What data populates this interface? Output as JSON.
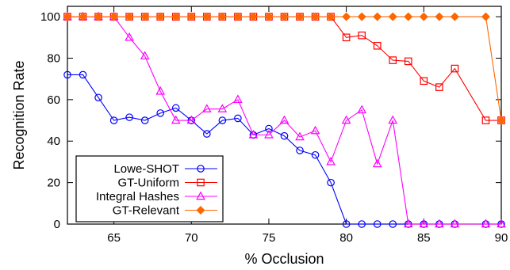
{
  "chart_data": {
    "type": "line",
    "title": "",
    "xlabel": "% Occlusion",
    "ylabel": "Recognition Rate",
    "xlim": [
      62,
      90
    ],
    "ylim": [
      0,
      105
    ],
    "x_ticks": [
      65,
      70,
      75,
      80,
      85,
      90
    ],
    "y_ticks": [
      0,
      20,
      40,
      60,
      80,
      100
    ],
    "grid": false,
    "legend_position": "bottom-left",
    "series": [
      {
        "name": "Lowe-SHOT",
        "color": "#0000ff",
        "marker": "circle",
        "x": [
          62,
          63,
          64,
          65,
          66,
          67,
          68,
          69,
          70,
          71,
          72,
          73,
          74,
          75,
          76,
          77,
          78,
          79,
          80,
          81,
          82,
          83,
          84,
          85,
          86,
          87,
          89,
          90
        ],
        "y": [
          72,
          72,
          61,
          50,
          51.5,
          50,
          53.5,
          56,
          50,
          43.5,
          50,
          51,
          43,
          46,
          42.5,
          35.5,
          33.3,
          20,
          0,
          0,
          0,
          0,
          0,
          0,
          0,
          0,
          0,
          0
        ]
      },
      {
        "name": "GT-Uniform",
        "color": "#ff0000",
        "marker": "square",
        "x": [
          62,
          63,
          64,
          65,
          66,
          67,
          68,
          69,
          70,
          71,
          72,
          73,
          74,
          75,
          76,
          77,
          78,
          79,
          80,
          81,
          82,
          83,
          84,
          85,
          86,
          87,
          89,
          90
        ],
        "y": [
          100,
          100,
          100,
          100,
          100,
          100,
          100,
          100,
          100,
          100,
          100,
          100,
          100,
          100,
          100,
          100,
          100,
          100,
          90,
          91,
          86,
          79,
          78.5,
          69,
          66,
          75,
          50,
          50
        ]
      },
      {
        "name": "Integral Hashes",
        "color": "#ff00ff",
        "marker": "triangle",
        "x": [
          62,
          63,
          64,
          65,
          66,
          67,
          68,
          69,
          70,
          71,
          72,
          73,
          74,
          75,
          76,
          77,
          78,
          79,
          80,
          81,
          82,
          83,
          84,
          85,
          86,
          87,
          89,
          90
        ],
        "y": [
          100,
          100,
          100,
          100,
          90,
          81,
          64,
          50,
          50,
          55.5,
          55.5,
          60,
          43,
          43,
          50,
          42,
          45,
          30,
          50,
          55,
          29,
          50,
          0,
          0,
          0,
          0,
          0,
          0
        ]
      },
      {
        "name": "GT-Relevant",
        "color": "#ff6600",
        "marker": "diamond",
        "x": [
          62,
          63,
          64,
          65,
          66,
          67,
          68,
          69,
          70,
          71,
          72,
          73,
          74,
          75,
          76,
          77,
          78,
          79,
          80,
          81,
          82,
          83,
          84,
          85,
          86,
          87,
          89,
          90
        ],
        "y": [
          100,
          100,
          100,
          100,
          100,
          100,
          100,
          100,
          100,
          100,
          100,
          100,
          100,
          100,
          100,
          100,
          100,
          100,
          100,
          100,
          100,
          100,
          100,
          100,
          100,
          100,
          100,
          50
        ]
      }
    ]
  }
}
